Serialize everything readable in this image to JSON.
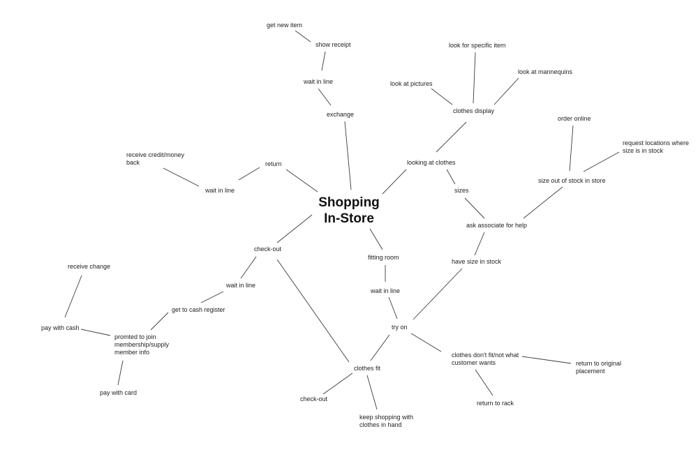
{
  "title": "Shopping\nIn-Store",
  "nodes": {
    "get_new_item": "get new item",
    "show_receipt": "show receipt",
    "wait_in_line_exchange": "wait in line",
    "exchange": "exchange",
    "receive_credit": "receive credit/money\nback",
    "return": "return",
    "wait_in_line_return": "wait in line",
    "look_for_specific_item": "look for specific item",
    "look_at_pictures": "look at pictures",
    "look_at_mannequins": "look at mannequins",
    "clothes_display": "clothes display",
    "looking_at_clothes": "looking at clothes",
    "sizes": "sizes",
    "order_online": "order online",
    "request_locations": "request locations where\nsize is in stock",
    "size_out_of_stock": "size out of stock in store",
    "ask_associate": "ask associate for help",
    "have_size_in_stock": "have size in stock",
    "check_out_main": "check-out",
    "wait_in_line_checkout": "wait in line",
    "get_to_cash_register": "get to cash register",
    "receive_change": "receive change",
    "pay_with_cash": "pay with cash",
    "prompted_membership": "promted to join\nmembership/supply\nmember info",
    "pay_with_card": "pay with card",
    "fitting_room": "fitting room",
    "wait_in_line_fitting": "wait in line",
    "try_on": "try on",
    "clothes_fit": "clothes fit",
    "clothes_dont_fit": "clothes don't fit/not what\ncustomer wants",
    "return_to_original": "return to original\nplacement",
    "return_to_rack": "return to rack",
    "check_out_after_fit": "check-out",
    "keep_shopping": "keep shopping with\nclothes in hand"
  }
}
